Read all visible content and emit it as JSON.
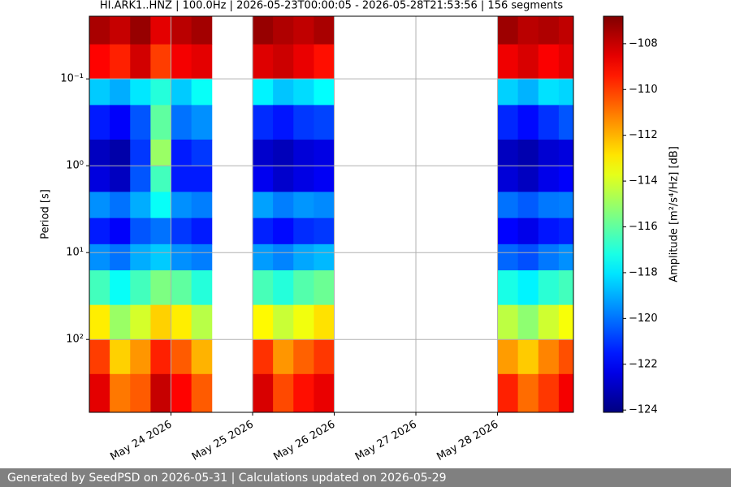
{
  "chart_data": {
    "type": "heatmap",
    "title": "HI.ARK1..HNZ | 100.0Hz | 2026-05-23T00:00:05 - 2026-05-28T21:53:56 | 156 segments",
    "ylabel": "Period [s]",
    "colorbar_label": "Amplitude [m²/s⁴/Hz] [dB]",
    "colormap": "jet",
    "clim": [
      -124.1,
      -106.8
    ],
    "cticks": [
      {
        "value": -108,
        "label": "−108"
      },
      {
        "value": -110,
        "label": "−110"
      },
      {
        "value": -112,
        "label": "−112"
      },
      {
        "value": -114,
        "label": "−114"
      },
      {
        "value": -116,
        "label": "−116"
      },
      {
        "value": -118,
        "label": "−118"
      },
      {
        "value": -120,
        "label": "−120"
      },
      {
        "value": -122,
        "label": "−122"
      },
      {
        "value": -124,
        "label": "−124"
      }
    ],
    "xlim": [
      0,
      5.93
    ],
    "xticks": [
      {
        "value": 1,
        "label": "May 24 2026"
      },
      {
        "value": 2,
        "label": "May 25 2026"
      },
      {
        "value": 3,
        "label": "May 26 2026"
      },
      {
        "value": 4,
        "label": "May 27 2026"
      },
      {
        "value": 5,
        "label": "May 28 2026"
      }
    ],
    "ylim": [
      0.019,
      690
    ],
    "ylog": true,
    "yinverted": true,
    "yticks": [
      {
        "value": 0.1,
        "label": "10⁻¹"
      },
      {
        "value": 1,
        "label": "10⁰"
      },
      {
        "value": 10,
        "label": "10¹"
      },
      {
        "value": 100,
        "label": "10²"
      }
    ],
    "grid": true,
    "xbins": [
      0,
      0.25,
      0.5,
      0.75,
      1,
      1.25,
      1.5,
      1.75,
      2,
      2.25,
      2.5,
      2.75,
      3,
      3.25,
      3.5,
      3.75,
      4,
      4.25,
      4.5,
      4.75,
      5,
      5.25,
      5.5,
      5.75,
      6
    ],
    "ybins": [
      0.019,
      0.04,
      0.1,
      0.2,
      0.5,
      1,
      2,
      4,
      8,
      16,
      40,
      100,
      250,
      690
    ],
    "values": [
      [
        -107.5,
        -108,
        -107.2,
        -108.5,
        -107.8,
        -107.4,
        null,
        null,
        -107.2,
        -107.6,
        -107.9,
        -107.5,
        null,
        null,
        null,
        null,
        null,
        null,
        null,
        null,
        -107.3,
        -107.8,
        -107.6,
        -107.9
      ],
      [
        -109,
        -109.5,
        -108.2,
        -110,
        -108.8,
        -108.5,
        null,
        null,
        -108.4,
        -108.1,
        -108.6,
        -109.2,
        null,
        null,
        null,
        null,
        null,
        null,
        null,
        null,
        -108.7,
        -108.3,
        -108.9,
        -108.5
      ],
      [
        -118.5,
        -119,
        -118,
        -117,
        -118.5,
        -117.5,
        null,
        null,
        -117.8,
        -118.6,
        -118.2,
        -117.6,
        null,
        null,
        null,
        null,
        null,
        null,
        null,
        null,
        -118.4,
        -118.9,
        -118.1,
        -118.3
      ],
      [
        -121.5,
        -122,
        -120.5,
        -116,
        -120,
        -119.5,
        null,
        null,
        -121.2,
        -121.6,
        -121,
        -120.8,
        null,
        null,
        null,
        null,
        null,
        null,
        null,
        null,
        -121.3,
        -121.8,
        -121.1,
        -120.5
      ],
      [
        -123,
        -123.4,
        -121,
        -115,
        -121.5,
        -121,
        null,
        null,
        -122.8,
        -123.1,
        -122.6,
        -122.4,
        null,
        null,
        null,
        null,
        null,
        null,
        null,
        null,
        -123,
        -123.3,
        -122.7,
        -122.5
      ],
      [
        -122.5,
        -123,
        -120.5,
        -116.5,
        -121.5,
        -121.5,
        null,
        null,
        -122.2,
        -122.8,
        -122.4,
        -122.1,
        null,
        null,
        null,
        null,
        null,
        null,
        null,
        null,
        -122.6,
        -123,
        -122.3,
        -122
      ],
      [
        -119.5,
        -120,
        -119,
        -117.5,
        -119.5,
        -119.8,
        null,
        null,
        -119.2,
        -119.8,
        -119.4,
        -119.6,
        null,
        null,
        null,
        null,
        null,
        null,
        null,
        null,
        -120,
        -120.4,
        -119.9,
        -119.8
      ],
      [
        -121.5,
        -122,
        -120.5,
        -120,
        -121,
        -121.5,
        null,
        null,
        -121.4,
        -121.8,
        -121.2,
        -121,
        null,
        null,
        null,
        null,
        null,
        null,
        null,
        null,
        -121.9,
        -122.3,
        -121.6,
        -121.4
      ],
      [
        -119.5,
        -120,
        -119,
        -118.5,
        -119.5,
        -119.8,
        null,
        null,
        -119.3,
        -119.7,
        -119.1,
        -118.8,
        null,
        null,
        null,
        null,
        null,
        null,
        null,
        null,
        -120.2,
        -120.6,
        -119.9,
        -119.5
      ],
      [
        -116.5,
        -117.5,
        -116.5,
        -115.5,
        -116,
        -117,
        null,
        null,
        -116.4,
        -117,
        -116.2,
        -115.8,
        null,
        null,
        null,
        null,
        null,
        null,
        null,
        null,
        -117.2,
        -117.8,
        -116.9,
        -116.5
      ],
      [
        -113,
        -115,
        -114,
        -112.5,
        -113,
        -114.5,
        null,
        null,
        -113.2,
        -114.2,
        -113.5,
        -112.8,
        null,
        null,
        null,
        null,
        null,
        null,
        null,
        null,
        -114.4,
        -115.2,
        -114.1,
        -113.4
      ],
      [
        -110,
        -112.5,
        -111.5,
        -109.5,
        -110.5,
        -112,
        null,
        null,
        -109.8,
        -111.5,
        -110.6,
        -109.9,
        null,
        null,
        null,
        null,
        null,
        null,
        null,
        null,
        -111.6,
        -112.4,
        -111.2,
        -110.3
      ],
      [
        -108.5,
        -111,
        -110.5,
        -108,
        -109,
        -110.5,
        null,
        null,
        -108.3,
        -110.2,
        -109.2,
        -108.6,
        null,
        null,
        null,
        null,
        null,
        null,
        null,
        null,
        -109.5,
        -110.8,
        -109.9,
        -108.8
      ]
    ]
  },
  "footer": "Generated by SeedPSD on 2026-05-31 | Calculations updated on 2026-05-29"
}
